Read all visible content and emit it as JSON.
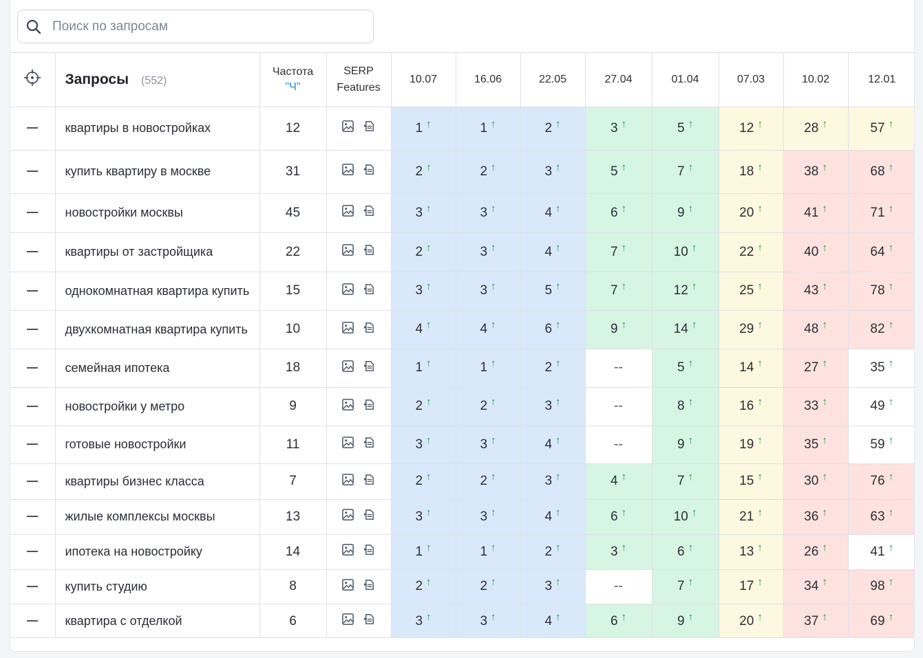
{
  "search": {
    "placeholder": "Поиск по запросам"
  },
  "header": {
    "target_icon": "crosshair-icon",
    "queries_title": "Запросы",
    "queries_count": "(552)",
    "freq_label": "Частота",
    "freq_sub": "\"Ч\"",
    "serp_label_1": "SERP",
    "serp_label_2": "Features",
    "dates": [
      "10.07",
      "16.06",
      "22.05",
      "27.04",
      "01.04",
      "07.03",
      "10.02",
      "12.01"
    ]
  },
  "colors": {
    "blue": "#d9e9fb",
    "green": "#d6f5e3",
    "yellow": "#fdf8e0",
    "red": "#fde2df",
    "white": "#ffffff",
    "arrow_up": "#1a9c44",
    "accent": "#1e8ee6"
  },
  "rows": [
    {
      "query": "квартиры в новостройках",
      "freq": "12",
      "pos": [
        "1",
        "1",
        "2",
        "3",
        "5",
        "12",
        "28",
        "57"
      ],
      "bg": [
        "blue",
        "blue",
        "blue",
        "green",
        "green",
        "yellow",
        "yellow",
        "yellow"
      ]
    },
    {
      "query": "купить квартиру в москве",
      "freq": "31",
      "pos": [
        "2",
        "2",
        "3",
        "5",
        "7",
        "18",
        "38",
        "68"
      ],
      "bg": [
        "blue",
        "blue",
        "blue",
        "green",
        "green",
        "yellow",
        "red",
        "red"
      ]
    },
    {
      "query": "новостройки москвы",
      "freq": "45",
      "pos": [
        "3",
        "3",
        "4",
        "6",
        "9",
        "20",
        "41",
        "71"
      ],
      "bg": [
        "blue",
        "blue",
        "blue",
        "green",
        "green",
        "yellow",
        "red",
        "red"
      ]
    },
    {
      "query": "квартиры от застройщика",
      "freq": "22",
      "pos": [
        "2",
        "3",
        "4",
        "7",
        "10",
        "22",
        "40",
        "64"
      ],
      "bg": [
        "blue",
        "blue",
        "blue",
        "green",
        "green",
        "yellow",
        "red",
        "red"
      ]
    },
    {
      "query": "однокомнатная квартира купить",
      "freq": "15",
      "pos": [
        "3",
        "3",
        "5",
        "7",
        "12",
        "25",
        "43",
        "78"
      ],
      "bg": [
        "blue",
        "blue",
        "blue",
        "green",
        "green",
        "yellow",
        "red",
        "red"
      ]
    },
    {
      "query": "двухкомнатная квартира купить",
      "freq": "10",
      "pos": [
        "4",
        "4",
        "6",
        "9",
        "14",
        "29",
        "48",
        "82"
      ],
      "bg": [
        "blue",
        "blue",
        "blue",
        "green",
        "green",
        "yellow",
        "red",
        "red"
      ]
    },
    {
      "query": "семейная ипотека",
      "freq": "18",
      "pos": [
        "1",
        "1",
        "2",
        "--",
        "5",
        "14",
        "27",
        "35"
      ],
      "bg": [
        "blue",
        "blue",
        "blue",
        "white",
        "green",
        "yellow",
        "red",
        "white"
      ]
    },
    {
      "query": "новостройки у метро",
      "freq": "9",
      "pos": [
        "2",
        "2",
        "3",
        "--",
        "8",
        "16",
        "33",
        "49"
      ],
      "bg": [
        "blue",
        "blue",
        "blue",
        "white",
        "green",
        "yellow",
        "red",
        "white"
      ]
    },
    {
      "query": "готовые новостройки",
      "freq": "11",
      "pos": [
        "3",
        "3",
        "4",
        "--",
        "9",
        "19",
        "35",
        "59"
      ],
      "bg": [
        "blue",
        "blue",
        "blue",
        "white",
        "green",
        "yellow",
        "red",
        "white"
      ]
    },
    {
      "query": "квартиры бизнес класса",
      "freq": "7",
      "pos": [
        "2",
        "2",
        "3",
        "4",
        "7",
        "15",
        "30",
        "76"
      ],
      "bg": [
        "blue",
        "blue",
        "blue",
        "green",
        "green",
        "yellow",
        "red",
        "red"
      ]
    },
    {
      "query": "жилые комплексы москвы",
      "freq": "13",
      "pos": [
        "3",
        "3",
        "4",
        "6",
        "10",
        "21",
        "36",
        "63"
      ],
      "bg": [
        "blue",
        "blue",
        "blue",
        "green",
        "green",
        "yellow",
        "red",
        "red"
      ]
    },
    {
      "query": "ипотека на новостройку",
      "freq": "14",
      "pos": [
        "1",
        "1",
        "2",
        "3",
        "6",
        "13",
        "26",
        "41"
      ],
      "bg": [
        "blue",
        "blue",
        "blue",
        "green",
        "green",
        "yellow",
        "red",
        "white"
      ]
    },
    {
      "query": "купить студию",
      "freq": "8",
      "pos": [
        "2",
        "2",
        "3",
        "--",
        "7",
        "17",
        "34",
        "98"
      ],
      "bg": [
        "blue",
        "blue",
        "blue",
        "white",
        "green",
        "yellow",
        "red",
        "red"
      ]
    },
    {
      "query": "квартира с отделкой",
      "freq": "6",
      "pos": [
        "3",
        "3",
        "4",
        "6",
        "9",
        "20",
        "37",
        "69"
      ],
      "bg": [
        "blue",
        "blue",
        "blue",
        "green",
        "green",
        "yellow",
        "red",
        "red"
      ]
    }
  ],
  "icons": {
    "search": "search-icon",
    "image": "image-icon",
    "serp": "serp-snippet-icon",
    "arrow": "arrow-up-icon",
    "row_action": "minus-icon"
  }
}
